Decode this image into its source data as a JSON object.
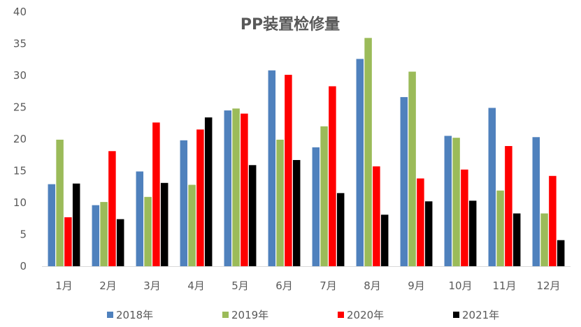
{
  "chart_data": {
    "type": "bar",
    "title": "PP装置检修量",
    "xlabel": "",
    "ylabel": "",
    "ylim": [
      0,
      40
    ],
    "yticks": [
      "0",
      "5",
      "10",
      "15",
      "20",
      "25",
      "30",
      "35",
      "40"
    ],
    "grid": false,
    "legend_position": "bottom",
    "categories": [
      "1月",
      "2月",
      "3月",
      "4月",
      "5月",
      "6月",
      "7月",
      "8月",
      "9月",
      "10月",
      "11月",
      "12月"
    ],
    "series": [
      {
        "name": "2018年",
        "color": "#4F81BD",
        "values": [
          12.9,
          9.6,
          14.9,
          19.8,
          24.5,
          30.8,
          18.7,
          32.6,
          26.6,
          20.5,
          24.9,
          20.3
        ]
      },
      {
        "name": "2019年",
        "color": "#9BBB59",
        "values": [
          19.9,
          10.1,
          10.9,
          12.8,
          24.8,
          19.9,
          22.0,
          35.9,
          30.6,
          20.2,
          11.9,
          8.3
        ]
      },
      {
        "name": "2020年",
        "color": "#FF0000",
        "values": [
          7.7,
          18.1,
          22.6,
          21.5,
          24.0,
          30.1,
          28.3,
          15.7,
          13.8,
          15.2,
          18.9,
          14.2
        ]
      },
      {
        "name": "2021年",
        "color": "#000000",
        "values": [
          13.0,
          7.4,
          13.1,
          23.4,
          15.9,
          16.7,
          11.5,
          8.1,
          10.2,
          10.3,
          8.3,
          4.1
        ]
      }
    ]
  }
}
